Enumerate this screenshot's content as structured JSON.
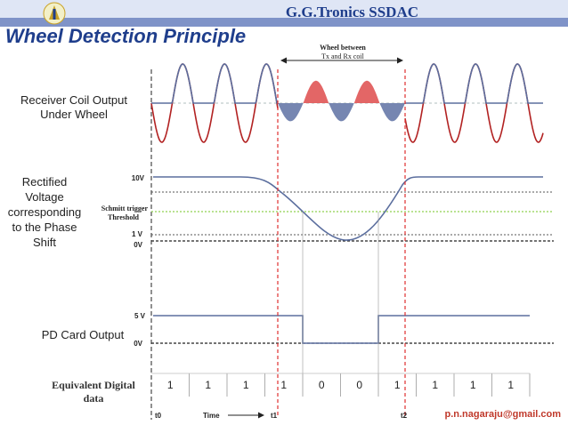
{
  "header": {
    "brand": "G.G.Tronics  SSDAC"
  },
  "title": "Wheel Detection Principle",
  "labels": {
    "receiver_line1": "Receiver Coil  Output",
    "receiver_line2": "Under  Wheel",
    "rectified_line1": "Rectified",
    "rectified_line2": "Voltage",
    "rectified_line3": "corresponding",
    "rectified_line4": "to the Phase",
    "rectified_line5": "Shift",
    "pd_card": "PD Card Output",
    "equiv_line1": "Equivalent Digital",
    "equiv_line2": "data"
  },
  "annotations": {
    "wheel_between_line1": "Wheel between",
    "wheel_between_line2": "Tx and Rx coil",
    "v10": "10V",
    "schmitt_line1": "Schmitt trigger",
    "schmitt_line2": "Threshold",
    "v1": "1 V",
    "v0_rect": "0V",
    "v5": "5 V",
    "v0_pd": "0V"
  },
  "timeline": {
    "t0": "t0",
    "time": "Time",
    "t1": "t1",
    "t2": "t2"
  },
  "digital_data": [
    "1",
    "1",
    "1",
    "1",
    "0",
    "0",
    "1",
    "1",
    "1",
    "1"
  ],
  "email": "p.n.nagaraju@gmail.com",
  "colors": {
    "brand": "#1f3e8c",
    "wave_red": "#b22222",
    "wave_blue": "#5b6e9e",
    "marker": "#e03030",
    "threshold": "#8fd14f",
    "header_band": "#7f93c8"
  },
  "logo_icon": "organization-logo-icon"
}
